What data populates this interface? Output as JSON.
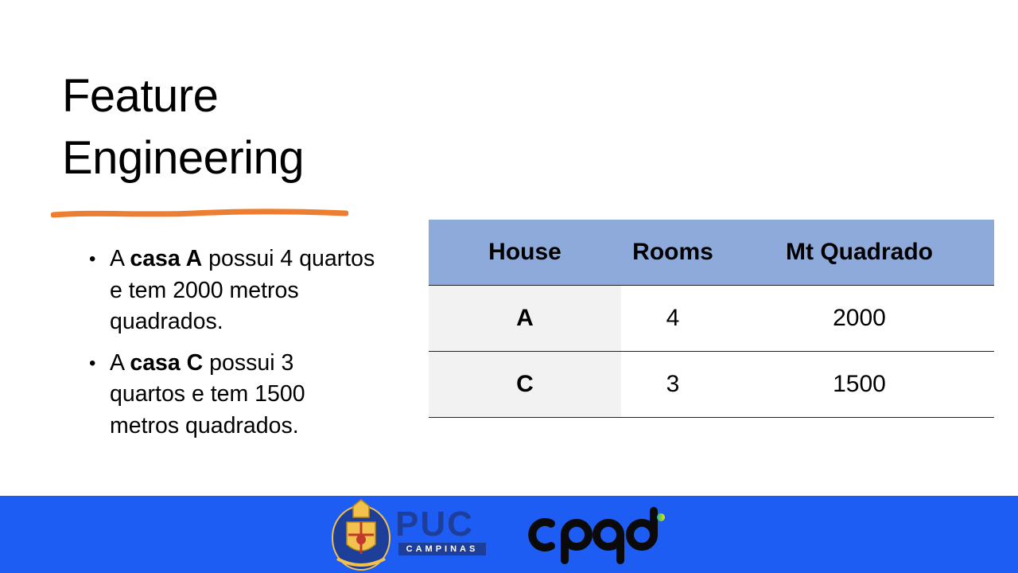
{
  "slide": {
    "title_lines": [
      "Feature",
      "Engineering"
    ],
    "bullets": [
      {
        "pre": "A ",
        "bold": "casa A",
        "post": " possui 4 quartos e tem 2000 metros quadrados."
      },
      {
        "pre": "A ",
        "bold": "casa C",
        "post": " possui 3 quartos e tem 1500 metros quadrados."
      }
    ],
    "accent_color": "#ed7d31"
  },
  "table": {
    "headers": [
      "House",
      "Rooms",
      "Mt Quadrado"
    ],
    "rows": [
      [
        "A",
        "4",
        "2000"
      ],
      [
        "C",
        "3",
        "1500"
      ]
    ],
    "header_color": "#8eaadb"
  },
  "footer": {
    "color": "#1e5df3",
    "logos": [
      {
        "name": "PUC Campinas",
        "icon": "puc-crest",
        "word": "PUC",
        "sub": "CAMPINAS"
      },
      {
        "name": "CPQD",
        "icon": "cpqd-logo",
        "word": "cpqd"
      }
    ]
  }
}
